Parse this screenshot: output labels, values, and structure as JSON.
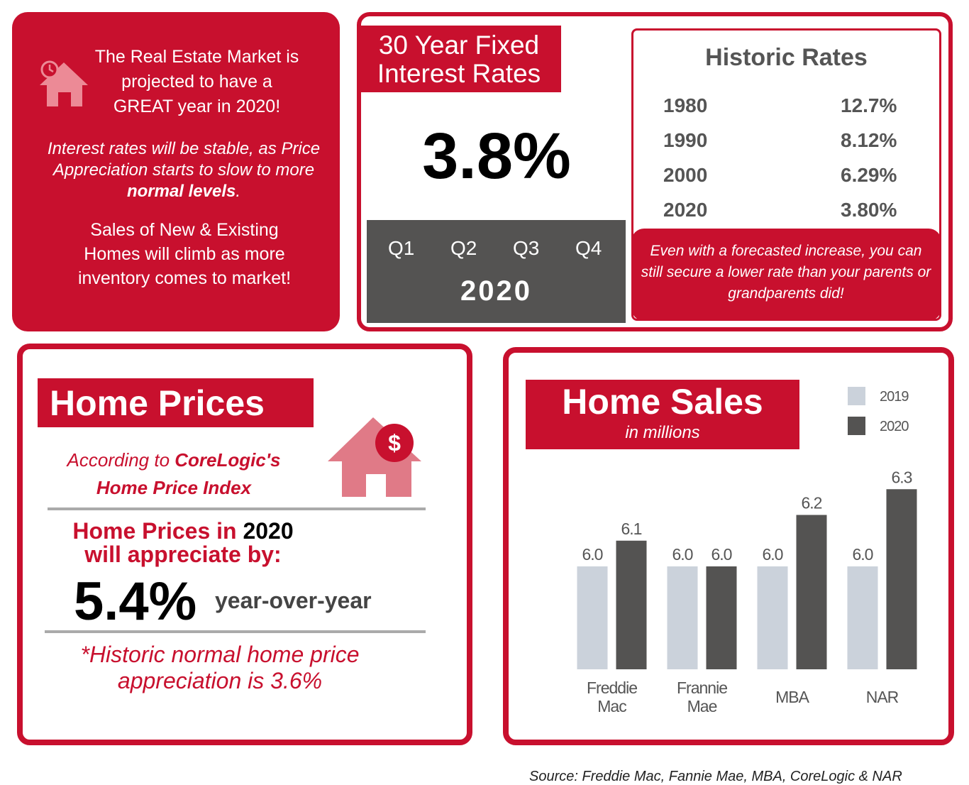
{
  "intro": {
    "headline": [
      "The Real Estate Market is",
      "projected to have a",
      "GREAT year in 2020!"
    ],
    "rates_note": [
      "Interest rates will be stable, as Price Appreciation starts to slow to more ",
      "normal levels",
      "."
    ],
    "sales_note": [
      "Sales of New & Existing",
      "Homes will climb as more",
      "inventory comes to market!"
    ]
  },
  "interest_rates": {
    "title": [
      "30 Year Fixed",
      "Interest Rates"
    ],
    "rate": "3.8%",
    "quarters": [
      "Q1",
      "Q2",
      "Q3",
      "Q4"
    ],
    "year": "2020"
  },
  "historic_rates": {
    "title": "Historic Rates",
    "rows": [
      [
        "1980",
        "12.7%"
      ],
      [
        "1990",
        "8.12%"
      ],
      [
        "2000",
        "6.29%"
      ],
      [
        "2020",
        "3.80%"
      ]
    ],
    "note": "Even with a forecasted increase, you can still secure a lower rate than your parents or grandparents did!"
  },
  "home_prices": {
    "title": "Home Prices",
    "source": [
      "According to ",
      "CoreLogic's",
      "Home Price Index"
    ],
    "headline": [
      "Home Prices in ",
      "2020",
      "will appreciate by:"
    ],
    "value": "5.4%",
    "unit": "year-over-year",
    "note": "*Historic normal home price appreciation is 3.6%"
  },
  "chart_data": {
    "type": "bar",
    "title": "Home Sales",
    "subtitle": "in millions",
    "categories": [
      "Freddie Mac",
      "Frannie Mae",
      "MBA",
      "NAR"
    ],
    "series": [
      {
        "name": "2019",
        "color": "#cbd2db",
        "values": [
          6.0,
          6.0,
          6.0,
          6.0
        ],
        "value_labels": [
          "6.0",
          "6.0",
          "6.0",
          "6.0"
        ]
      },
      {
        "name": "2020",
        "color": "#545352",
        "values": [
          6.1,
          6.0,
          6.2,
          6.3
        ],
        "value_labels": [
          "6.1",
          "6.0",
          "6.2",
          "6.3"
        ]
      }
    ],
    "ylim": [
      5.6,
      6.4
    ]
  },
  "footer": {
    "source": "Source: Freddie Mac, Fannie Mae, MBA, CoreLogic & NAR"
  }
}
